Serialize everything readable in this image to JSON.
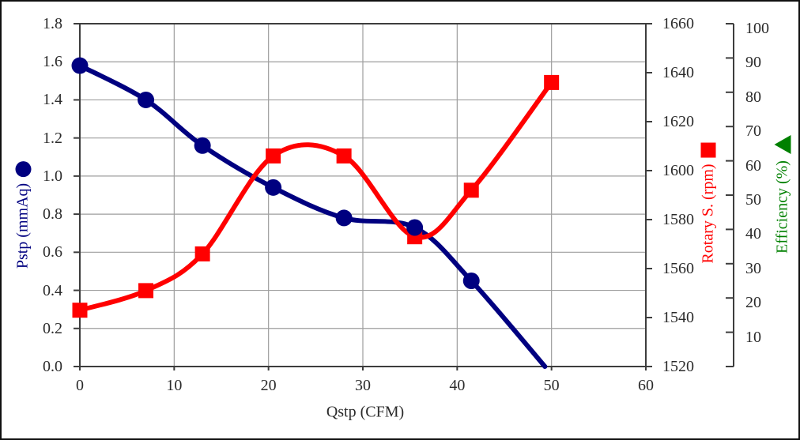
{
  "chart_data": {
    "type": "line",
    "grid": true,
    "x_axis": {
      "label": "Qstp (CFM)",
      "min": 0,
      "max": 60,
      "tick_step": 10,
      "ticks": [
        "0",
        "10",
        "20",
        "30",
        "40",
        "50",
        "60"
      ]
    },
    "y_axis_left": {
      "label": "Pstp (mmAq)",
      "color": "#000080",
      "marker": "circle",
      "min": 0,
      "max": 1.8,
      "tick_step": 0.2,
      "ticks": [
        "1.8",
        "1.6",
        "1.4",
        "1.2",
        "1.0",
        "0.8",
        "0.6",
        "0.4",
        "0.2",
        "0.0"
      ]
    },
    "y_axis_right": {
      "label": "Rotary S. (rpm)",
      "color": "#ff0000",
      "marker": "square",
      "min": 1520,
      "max": 1660,
      "tick_step": 20,
      "ticks": [
        "1660",
        "1640",
        "1620",
        "1600",
        "1580",
        "1560",
        "1540",
        "1520"
      ]
    },
    "y_axis_far_right": {
      "label": "Efficiency (%)",
      "color": "#008000",
      "marker": "triangle-left",
      "min": 0,
      "max": 100,
      "tick_step": 10,
      "ticks": [
        "100",
        "90",
        "80",
        "70",
        "60",
        "50",
        "40",
        "30",
        "20",
        "10"
      ]
    },
    "series": [
      {
        "name": "Pstp",
        "axis": "left",
        "color": "#000080",
        "marker": "circle",
        "smooth": true,
        "points": [
          [
            0,
            1.58
          ],
          [
            7,
            1.4
          ],
          [
            13,
            1.16
          ],
          [
            20.5,
            0.94
          ],
          [
            28,
            0.78
          ],
          [
            35.5,
            0.73
          ],
          [
            41.5,
            0.45
          ],
          [
            49.3,
            0.0
          ]
        ],
        "last_point_has_marker": false
      },
      {
        "name": "Rotary S.",
        "axis": "right",
        "color": "#ff0000",
        "marker": "square",
        "smooth": true,
        "points": [
          [
            0,
            1543
          ],
          [
            7,
            1551
          ],
          [
            13,
            1566
          ],
          [
            20.5,
            1606
          ],
          [
            28,
            1606
          ],
          [
            35.5,
            1573
          ],
          [
            41.5,
            1592
          ],
          [
            50,
            1636
          ]
        ]
      }
    ]
  }
}
